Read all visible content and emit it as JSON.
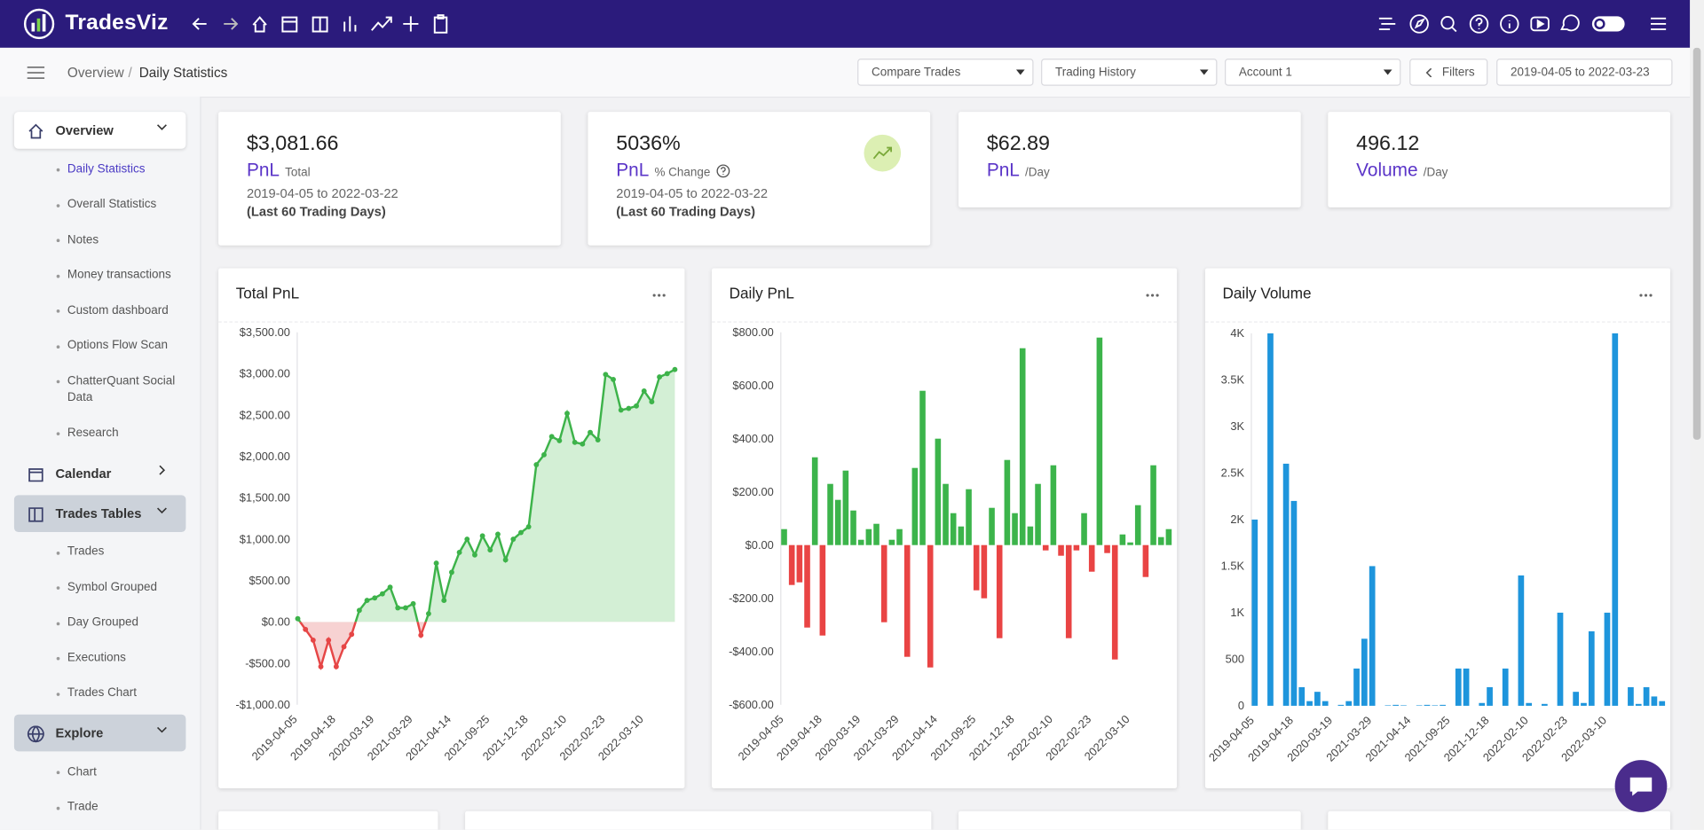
{
  "header": {
    "brand": "TradesViz"
  },
  "breadcrumb": {
    "items": [
      "Overview",
      "Daily Statistics"
    ],
    "separator": "/"
  },
  "toolbar": {
    "compare": "Compare Trades",
    "history": "Trading History",
    "account": "Account 1",
    "filters": "Filters",
    "date_range": "2019-04-05 to 2022-03-23"
  },
  "sidebar": {
    "sections": [
      {
        "label": "Overview",
        "items": [
          "Daily Statistics",
          "Overall Statistics",
          "Notes",
          "Money transactions",
          "Custom dashboard",
          "Options Flow Scan",
          "ChatterQuant Social Data",
          "Research"
        ]
      },
      {
        "label": "Calendar",
        "items": []
      },
      {
        "label": "Trades Tables",
        "items": [
          "Trades",
          "Symbol Grouped",
          "Day Grouped",
          "Executions",
          "Trades Chart"
        ]
      },
      {
        "label": "Explore",
        "items": [
          "Chart",
          "Trade"
        ]
      }
    ]
  },
  "cards": [
    {
      "value": "$3,081.66",
      "label": "PnL",
      "sub": "Total",
      "range": "2019-04-05 to 2022-03-22",
      "note": "(Last 60 Trading Days)"
    },
    {
      "value": "5036%",
      "label": "PnL",
      "sub": "% Change",
      "range": "2019-04-05 to 2022-03-22",
      "note": "(Last 60 Trading Days)"
    },
    {
      "value": "$62.89",
      "label": "PnL",
      "sub": "/Day"
    },
    {
      "value": "496.12",
      "label": "Volume",
      "sub": "/Day"
    }
  ],
  "chart_data": [
    {
      "type": "area",
      "title": "Total PnL",
      "categories": [
        "2019-04-05",
        null,
        null,
        null,
        null,
        "2019-04-18",
        null,
        null,
        null,
        null,
        "2020-03-19",
        null,
        null,
        null,
        null,
        "2021-03-29",
        null,
        null,
        null,
        null,
        "2021-04-14",
        null,
        null,
        null,
        null,
        "2021-09-25",
        null,
        null,
        null,
        null,
        "2021-12-18",
        null,
        null,
        null,
        null,
        "2022-02-10",
        null,
        null,
        null,
        null,
        "2022-02-23",
        null,
        null,
        null,
        null,
        "2022-03-10",
        null,
        null,
        null,
        null
      ],
      "values": [
        40,
        -90,
        -220,
        -540,
        -220,
        -540,
        -300,
        -150,
        140,
        260,
        290,
        340,
        420,
        170,
        170,
        220,
        -160,
        100,
        710,
        260,
        600,
        840,
        1000,
        810,
        1040,
        870,
        1060,
        750,
        1000,
        1080,
        1150,
        1900,
        2020,
        2240,
        2190,
        2520,
        2170,
        2150,
        2290,
        2200,
        2990,
        2930,
        2560,
        2580,
        2610,
        2790,
        2660,
        2960,
        3000,
        3050
      ],
      "color": "#3db34a",
      "negative_color": "#e64646",
      "area_color": "#d3efd5",
      "negative_area_color": "#f7d2d2",
      "ylim": [
        -1000,
        3500
      ],
      "yticks": [
        {
          "value": 3500,
          "label": "$3,500.00"
        },
        {
          "value": 3000,
          "label": "$3,000.00"
        },
        {
          "value": 2500,
          "label": "$2,500.00"
        },
        {
          "value": 2000,
          "label": "$2,000.00"
        },
        {
          "value": 1500,
          "label": "$1,500.00"
        },
        {
          "value": 1000,
          "label": "$1,000.00"
        },
        {
          "value": 500,
          "label": "$500.00"
        },
        {
          "value": 0,
          "label": "$0.00"
        },
        {
          "value": -500,
          "label": "-$500.00"
        },
        {
          "value": -1000,
          "label": "-$1,000.00"
        }
      ],
      "grid": false
    },
    {
      "type": "bar",
      "title": "Daily PnL",
      "categories": [
        "2019-04-05",
        null,
        null,
        null,
        null,
        "2019-04-18",
        null,
        null,
        null,
        null,
        "2020-03-19",
        null,
        null,
        null,
        null,
        "2021-03-29",
        null,
        null,
        null,
        null,
        "2021-04-14",
        null,
        null,
        null,
        null,
        "2021-09-25",
        null,
        null,
        null,
        null,
        "2021-12-18",
        null,
        null,
        null,
        null,
        "2022-02-10",
        null,
        null,
        null,
        null,
        "2022-02-23",
        null,
        null,
        null,
        null,
        "2022-03-10",
        null,
        null,
        null,
        null,
        null
      ],
      "values": [
        60,
        -150,
        -140,
        -310,
        330,
        -340,
        230,
        170,
        280,
        130,
        20,
        60,
        80,
        -290,
        20,
        60,
        -420,
        290,
        580,
        -460,
        400,
        230,
        120,
        70,
        210,
        -170,
        -200,
        140,
        -350,
        320,
        120,
        740,
        70,
        230,
        -20,
        300,
        -40,
        -350,
        -20,
        120,
        -100,
        780,
        -30,
        -430,
        40,
        10,
        150,
        -120,
        300,
        30,
        60
      ],
      "color": "#3cb44b",
      "negative_color": "#e94444",
      "ylim": [
        -600,
        800
      ],
      "yticks": [
        {
          "value": 800,
          "label": "$800.00"
        },
        {
          "value": 600,
          "label": "$600.00"
        },
        {
          "value": 400,
          "label": "$400.00"
        },
        {
          "value": 200,
          "label": "$200.00"
        },
        {
          "value": 0,
          "label": "$0.00"
        },
        {
          "value": -200,
          "label": "-$200.00"
        },
        {
          "value": -400,
          "label": "-$400.00"
        },
        {
          "value": -600,
          "label": "-$600.00"
        }
      ],
      "grid": false
    },
    {
      "type": "bar",
      "title": "Daily Volume",
      "categories": [
        "2019-04-05",
        null,
        null,
        null,
        null,
        "2019-04-18",
        null,
        null,
        null,
        null,
        "2020-03-19",
        null,
        null,
        null,
        null,
        "2021-03-29",
        null,
        null,
        null,
        null,
        "2021-04-14",
        null,
        null,
        null,
        null,
        "2021-09-25",
        null,
        null,
        null,
        null,
        "2021-12-18",
        null,
        null,
        null,
        null,
        "2022-02-10",
        null,
        null,
        null,
        null,
        "2022-02-23",
        null,
        null,
        null,
        null,
        "2022-03-10",
        null,
        null,
        null,
        null,
        null,
        null,
        null
      ],
      "values": [
        2000,
        0,
        4000,
        0,
        2600,
        2200,
        200,
        50,
        150,
        50,
        0,
        10,
        50,
        400,
        720,
        1500,
        0,
        5,
        10,
        5,
        0,
        5,
        10,
        5,
        10,
        0,
        400,
        400,
        0,
        30,
        200,
        0,
        400,
        0,
        1400,
        30,
        0,
        20,
        0,
        1000,
        0,
        150,
        30,
        800,
        0,
        1000,
        4000,
        0,
        200,
        20,
        200,
        100,
        50
      ],
      "color": "#1e95dc",
      "negative_color": "#1e95dc",
      "ylim": [
        0,
        4000
      ],
      "yticks": [
        {
          "value": 4000,
          "label": "4K"
        },
        {
          "value": 3500,
          "label": "3.5K"
        },
        {
          "value": 3000,
          "label": "3K"
        },
        {
          "value": 2500,
          "label": "2.5K"
        },
        {
          "value": 2000,
          "label": "2K"
        },
        {
          "value": 1500,
          "label": "1.5K"
        },
        {
          "value": 1000,
          "label": "1K"
        },
        500,
        0
      ],
      "grid": false
    }
  ]
}
